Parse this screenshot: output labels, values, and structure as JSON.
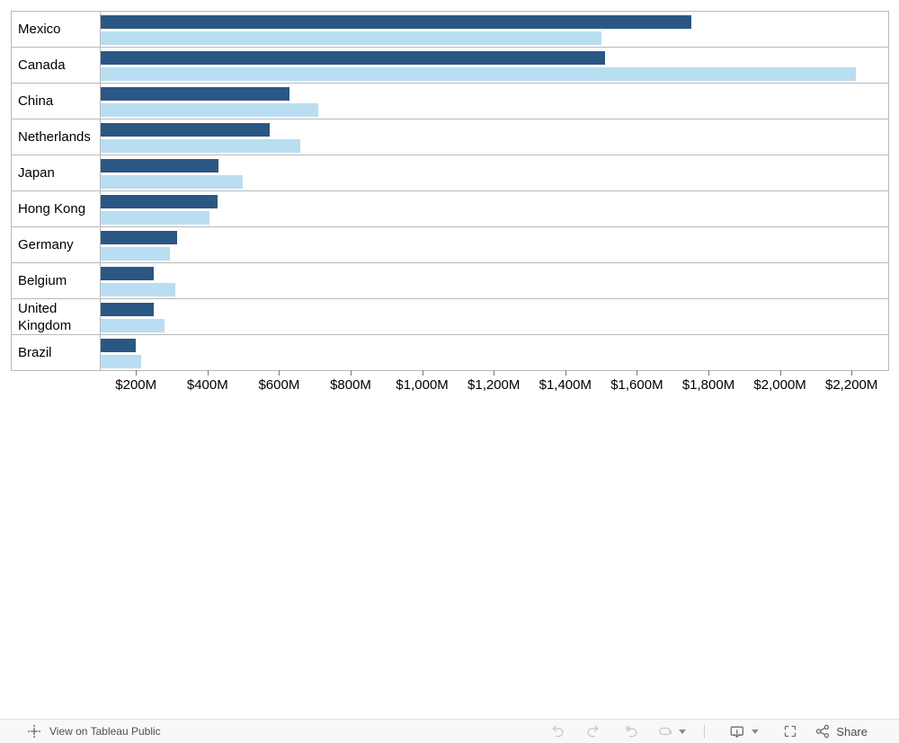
{
  "chart_data": {
    "type": "bar",
    "orientation": "horizontal",
    "title": "",
    "categories": [
      "Mexico",
      "Canada",
      "China",
      "Netherlands",
      "Japan",
      "Hong Kong",
      "Germany",
      "Belgium",
      "United Kingdom",
      "Brazil"
    ],
    "series": [
      {
        "name": "dark-blue",
        "color": "#2B5784",
        "values": [
          1750,
          1510,
          630,
          575,
          432,
          430,
          317,
          253,
          251,
          203
        ]
      },
      {
        "name": "light-blue",
        "color": "#B9DDF1",
        "values": [
          1500,
          2210,
          710,
          660,
          500,
          408,
          298,
          311,
          281,
          217
        ]
      }
    ],
    "value_unit": "USD millions",
    "axis": {
      "min": 104,
      "max": 2300,
      "ticks": [
        200,
        400,
        600,
        800,
        1000,
        1200,
        1400,
        1600,
        1800,
        2000,
        2200
      ],
      "tick_labels": [
        "$200M",
        "$400M",
        "$600M",
        "$800M",
        "$1,000M",
        "$1,200M",
        "$1,400M",
        "$1,600M",
        "$1,800M",
        "$2,000M",
        "$2,200M"
      ]
    },
    "legend": "none",
    "grid": "row-separators-only",
    "grid_color": "#b9b9b9"
  },
  "toolbar": {
    "view_label": "View on Tableau Public",
    "share_label": "Share",
    "icons": [
      "tableau-logo",
      "undo",
      "redo",
      "replay",
      "refresh",
      "caret-down",
      "download-display",
      "full-screen",
      "share"
    ]
  }
}
